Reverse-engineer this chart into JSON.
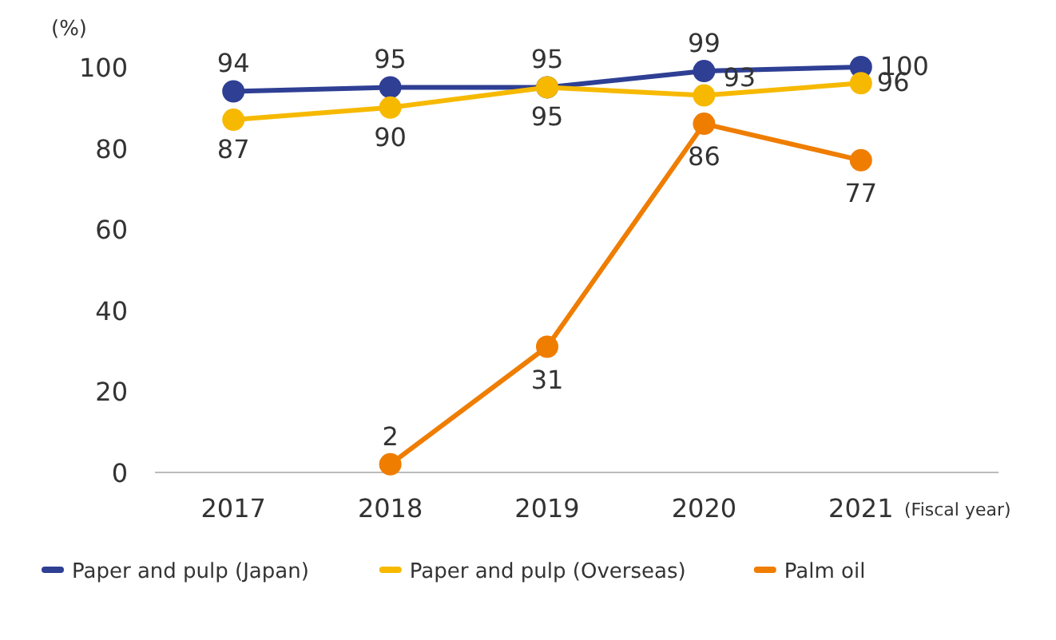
{
  "chart_data": {
    "type": "line",
    "ylabel": "(%)",
    "xlabel": "(Fiscal year)",
    "categories": [
      "2017",
      "2018",
      "2019",
      "2020",
      "2021"
    ],
    "series": [
      {
        "name": "Paper and pulp (Japan)",
        "color": "#2e3f94",
        "values": [
          94,
          95,
          95,
          99,
          100
        ]
      },
      {
        "name": "Paper and pulp (Overseas)",
        "color": "#f6b900",
        "values": [
          87,
          90,
          95,
          93,
          96
        ]
      },
      {
        "name": "Palm oil",
        "color": "#ef7d00",
        "values": [
          null,
          2,
          31,
          86,
          77
        ]
      }
    ],
    "ylim": [
      0,
      100
    ],
    "yticks": [
      0,
      20,
      40,
      60,
      80,
      100
    ],
    "grid": false,
    "legend": "bottom",
    "marker": "circle",
    "line_style": "solid",
    "data_labels": true
  }
}
